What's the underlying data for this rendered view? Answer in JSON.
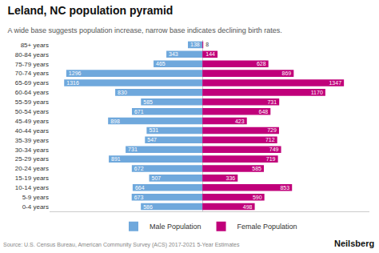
{
  "chart_data": {
    "type": "bar",
    "orientation": "horizontal",
    "title": "Leland, NC population pyramid",
    "subtitle": "A wide base suggests population increase, narrow base indicates declining birth rates.",
    "source": "Source: U.S. Census Bureau, American Community Survey (ACS) 2017-2021 5-Year Estimates",
    "branding": "Neilsberg",
    "categories": [
      "85+ years",
      "80-84 years",
      "75-79 years",
      "70-74 years",
      "65-69 years",
      "60-64 years",
      "55-59 years",
      "50-54 years",
      "45-49 years",
      "40-44 years",
      "35-39 years",
      "30-34 years",
      "25-29 years",
      "20-24 years",
      "15-19 years",
      "10-14 years",
      "5-9 years",
      "0-4 years"
    ],
    "series": [
      {
        "name": "Male Population",
        "color": "#6fa8dc",
        "values": [
          138,
          343,
          465,
          1296,
          1316,
          830,
          585,
          671,
          898,
          531,
          547,
          731,
          891,
          672,
          507,
          664,
          673,
          586
        ]
      },
      {
        "name": "Female Population",
        "color": "#c0007a",
        "values": [
          8,
          144,
          628,
          869,
          1347,
          1170,
          731,
          648,
          423,
          729,
          712,
          749,
          719,
          585,
          336,
          853,
          590,
          498
        ]
      }
    ],
    "xlim": [
      -1454.76,
      1589.46
    ],
    "data_labels": true,
    "tick_labels": "y",
    "grid": false,
    "legend": "bottom"
  }
}
